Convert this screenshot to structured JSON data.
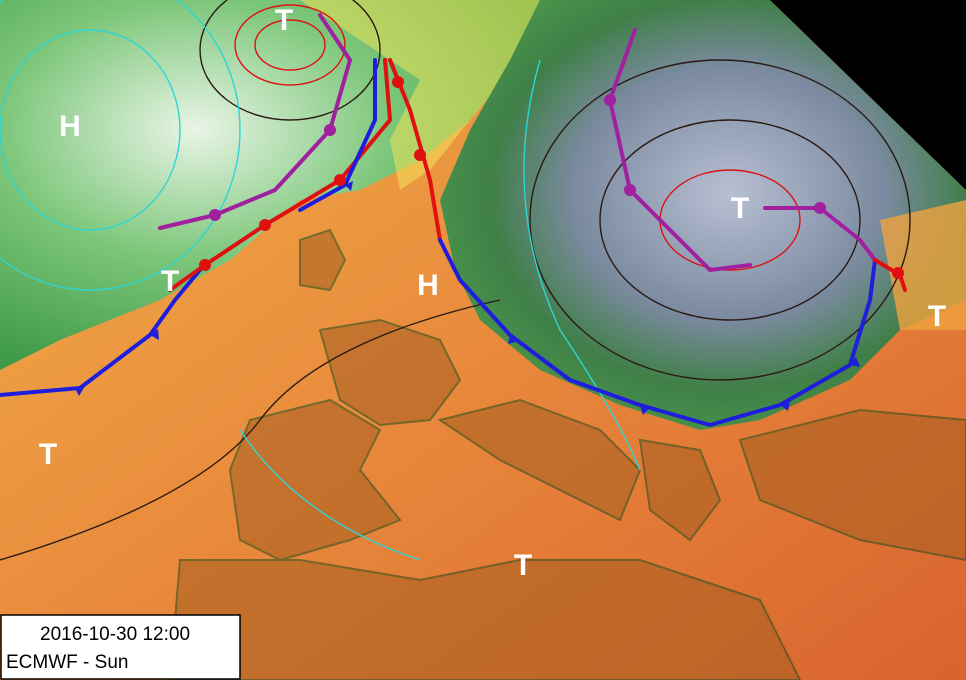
{
  "pressure_centers": [
    "H",
    "T",
    "T",
    "H",
    "T",
    "T",
    "T",
    "T"
  ],
  "caption": {
    "timestamp": "2016-10-30 12:00",
    "source": "ECMWF - Sun"
  }
}
